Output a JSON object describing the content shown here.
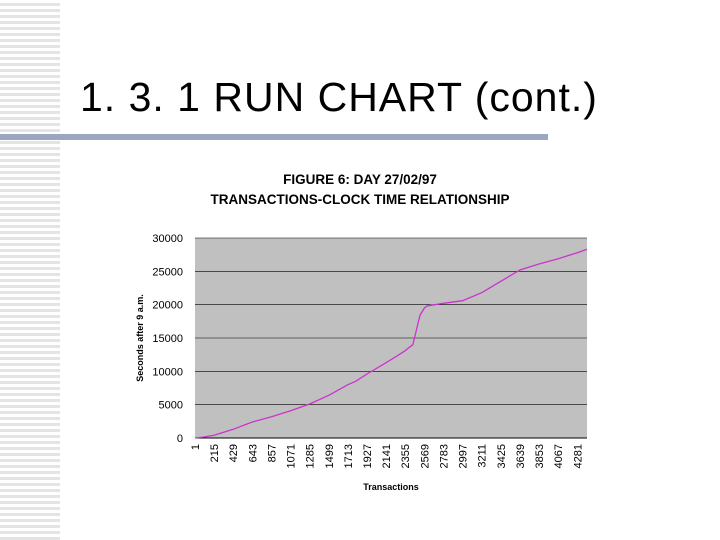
{
  "slide": {
    "title": "1. 3. 1 RUN CHART (cont.)"
  },
  "colors": {
    "plot_background": "#c0c0c0",
    "line": "#cc33cc",
    "title_rule": "#9aa6c4"
  },
  "chart_data": {
    "type": "line",
    "title": "FIGURE 6: DAY 27/02/97",
    "subtitle": "TRANSACTIONS-CLOCK TIME RELATIONSHIP",
    "xlabel": "Transactions",
    "ylabel": "Seconds after 9 a.m.",
    "ylim": [
      0,
      30000
    ],
    "yticks": [
      0,
      5000,
      10000,
      15000,
      20000,
      25000,
      30000
    ],
    "categories": [
      "1",
      "215",
      "429",
      "643",
      "857",
      "1071",
      "1285",
      "1499",
      "1713",
      "1927",
      "2141",
      "2355",
      "2569",
      "2783",
      "2997",
      "3211",
      "3425",
      "3639",
      "3853",
      "4067",
      "4281"
    ],
    "xlim": [
      1,
      4390
    ],
    "grid": "horizontal",
    "legend": "none",
    "series": [
      {
        "x": [
          1,
          100,
          215,
          429,
          643,
          857,
          1071,
          1285,
          1499,
          1713,
          1800,
          1927,
          2141,
          2250,
          2355,
          2400,
          2440,
          2480,
          2520,
          2569,
          2600,
          2783,
          2997,
          3211,
          3425,
          3639,
          3853,
          4067,
          4281,
          4390
        ],
        "values": [
          0,
          150,
          400,
          1300,
          2400,
          3200,
          4100,
          5100,
          6400,
          8000,
          8500,
          9600,
          11300,
          12200,
          13100,
          13600,
          14000,
          16200,
          18400,
          19500,
          19800,
          20200,
          20600,
          21800,
          23500,
          25200,
          26100,
          26900,
          27800,
          28300
        ]
      }
    ]
  }
}
